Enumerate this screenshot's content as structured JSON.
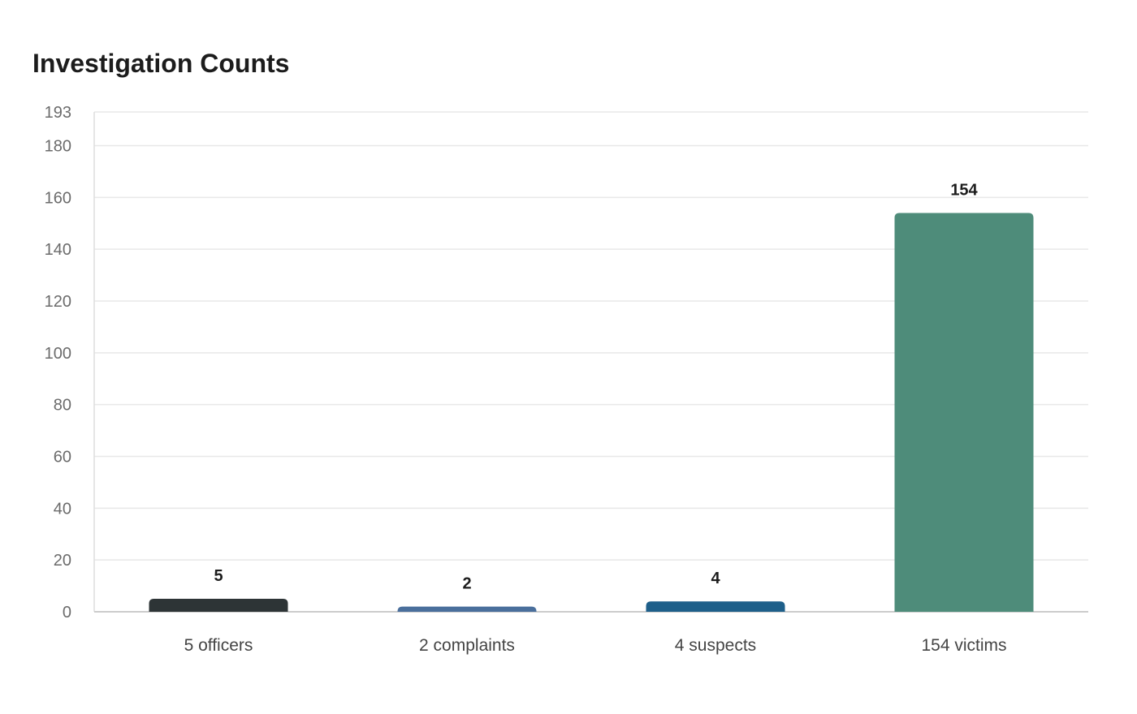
{
  "chart_data": {
    "type": "bar",
    "title": "Investigation Counts",
    "xlabel": "",
    "ylabel": "",
    "categories": [
      "5 officers",
      "2 complaints",
      "4 suspects",
      "154 victims"
    ],
    "values": [
      5,
      2,
      4,
      154
    ],
    "value_labels": [
      "5",
      "2",
      "4",
      "154"
    ],
    "colors": [
      "#2d3436",
      "#4a6f9c",
      "#1e5f8a",
      "#4e8c7a"
    ],
    "ylim": [
      0,
      193
    ],
    "yticks": [
      0,
      20,
      40,
      60,
      80,
      100,
      120,
      140,
      160,
      180,
      193
    ],
    "grid": true,
    "legend": "none"
  }
}
